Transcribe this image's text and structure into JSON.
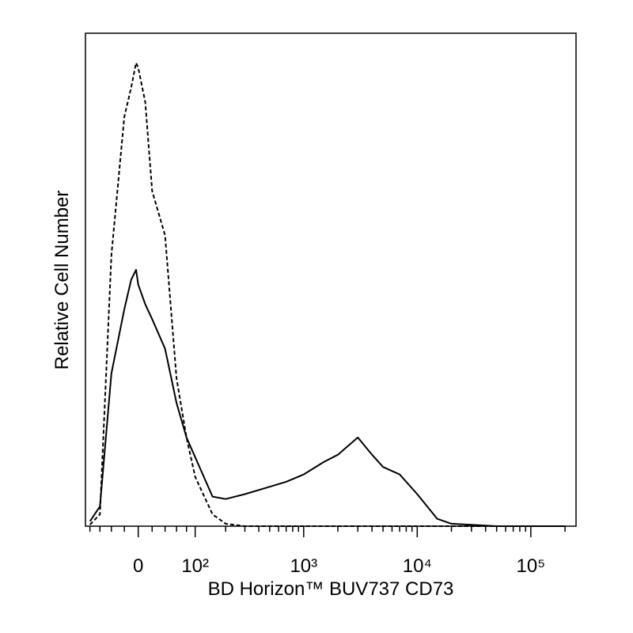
{
  "chart_data": {
    "type": "line",
    "x_label": "BD Horizon™ BUV737 CD73",
    "y_label": "Relative Cell Number",
    "xscale": "biexponential",
    "xlim": [
      -90,
      250000
    ],
    "ylim": [
      0,
      100
    ],
    "xticks": [
      0,
      {
        "value": 100,
        "label": "10²"
      },
      {
        "value": 1000,
        "label": "10³"
      },
      {
        "value": 10000,
        "label": "10⁴"
      },
      {
        "value": 100000,
        "label": "10⁵"
      }
    ],
    "xminorticks": [
      -80,
      -60,
      -40,
      -20,
      20,
      40,
      60,
      80,
      200,
      300,
      400,
      500,
      600,
      700,
      800,
      900,
      2000,
      3000,
      4000,
      5000,
      6000,
      7000,
      8000,
      9000,
      20000,
      30000,
      40000,
      50000,
      60000,
      70000,
      80000,
      90000,
      200000
    ],
    "x": [
      -80,
      -60,
      -40,
      -20,
      -10,
      -3,
      0,
      10,
      20,
      40,
      60,
      80,
      100,
      150,
      200,
      300,
      500,
      700,
      1000,
      1500,
      2000,
      3000,
      4000,
      5000,
      7000,
      10000,
      15000,
      20000,
      50000,
      100000,
      200000
    ],
    "series": [
      {
        "color": "#000000",
        "linestyle": "solid",
        "values": [
          1,
          4,
          31,
          44,
          50,
          52,
          49,
          45,
          42,
          36,
          25,
          18,
          14,
          6,
          5.5,
          6.5,
          8,
          9,
          10.5,
          13,
          14.5,
          18,
          14.5,
          12,
          10.5,
          6.5,
          1.5,
          0.5,
          0,
          0,
          0
        ]
      },
      {
        "color": "#000000",
        "linestyle": "dashed",
        "values": [
          0.3,
          2.4,
          55,
          83,
          89,
          94,
          93,
          86,
          68,
          59,
          30,
          18,
          10,
          2.4,
          0.5,
          0,
          0,
          0,
          0,
          0,
          0,
          0,
          0,
          0,
          0,
          0,
          0,
          0,
          0,
          0,
          0
        ]
      }
    ]
  }
}
